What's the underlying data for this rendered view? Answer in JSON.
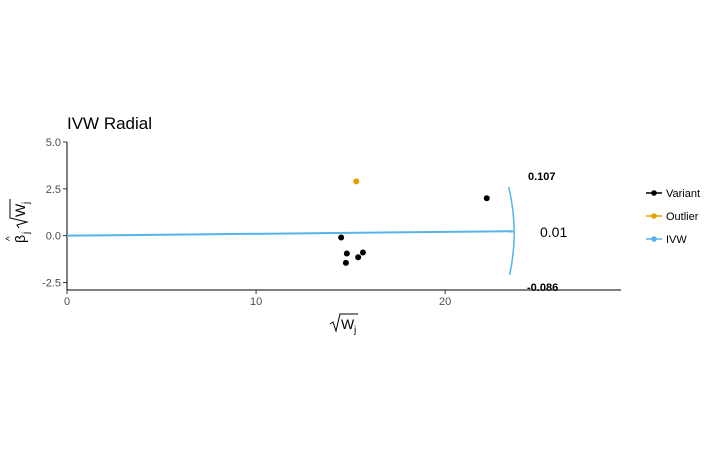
{
  "chart_data": {
    "type": "scatter",
    "title": "IVW Radial",
    "xlabel": "√W_j",
    "ylabel": "β̂_j √W_j",
    "xlim": [
      0,
      29.3
    ],
    "ylim": [
      -2.9,
      5.0
    ],
    "x_ticks": [
      0,
      10,
      20
    ],
    "x_tick_labels": [
      "0",
      "10",
      "20"
    ],
    "y_ticks": [
      -2.5,
      0,
      2.5,
      5
    ],
    "y_tick_labels": [
      "-2.5",
      "0.0",
      "2.5",
      "5.0"
    ],
    "grid": false,
    "legend_position": "right",
    "series": [
      {
        "name": "Variant",
        "color": "#000000",
        "points": [
          {
            "x": 14.5,
            "y": -0.1
          },
          {
            "x": 14.8,
            "y": -0.95
          },
          {
            "x": 14.75,
            "y": -1.45
          },
          {
            "x": 15.4,
            "y": -1.15
          },
          {
            "x": 15.65,
            "y": -0.9
          },
          {
            "x": 22.2,
            "y": 2.0
          }
        ]
      },
      {
        "name": "Outlier",
        "color": "#E69F00",
        "points": [
          {
            "x": 15.3,
            "y": 2.9
          }
        ]
      },
      {
        "name": "IVW",
        "color": "#56B4E9",
        "slope": 0.01,
        "ci_lower": -0.086,
        "ci_upper": 0.107
      }
    ],
    "annotations": {
      "estimate": "0.01",
      "ci_upper": "0.107",
      "ci_lower": "-0.086"
    }
  }
}
